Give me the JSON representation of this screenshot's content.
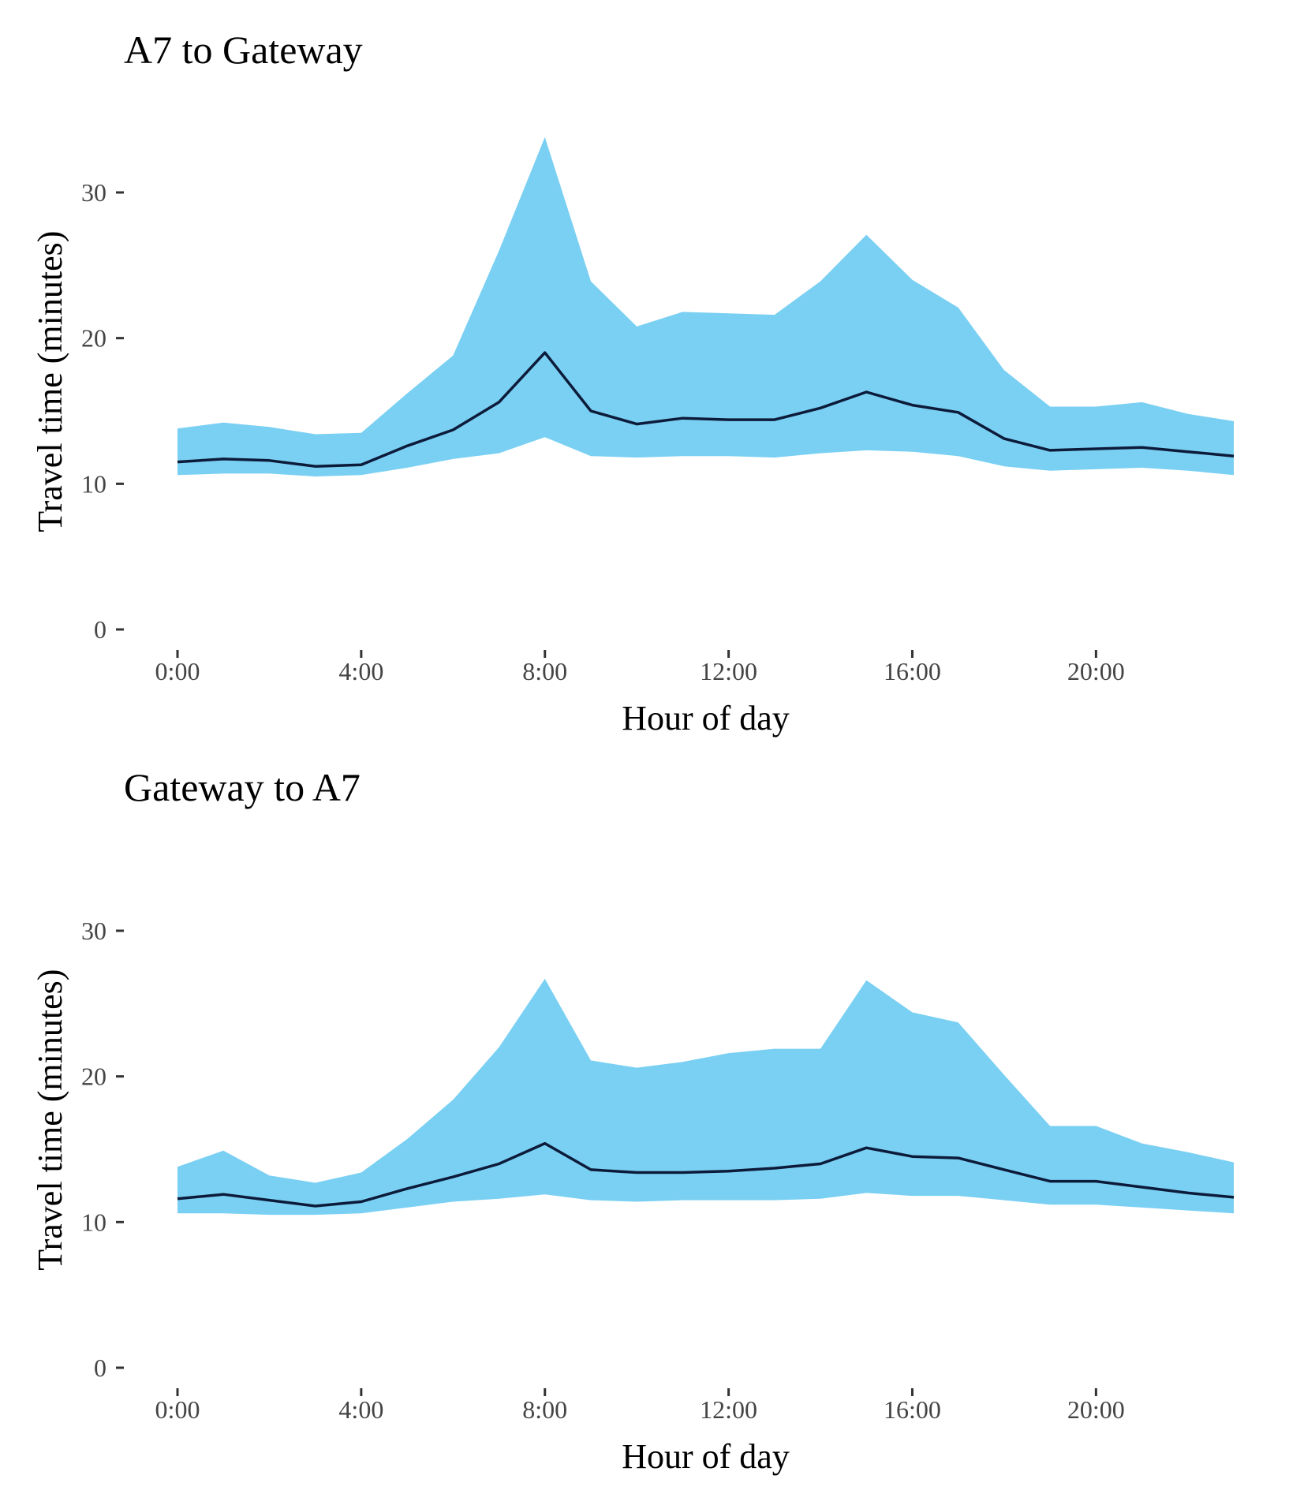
{
  "colors": {
    "band": "#7ad0f3",
    "line": "#0d1b3a",
    "tick_text": "#444444",
    "text": "#000000"
  },
  "chart_data": [
    {
      "type": "area",
      "title": "A7 to Gateway",
      "xlabel": "Hour of day",
      "ylabel": "Travel time (minutes)",
      "xlim": [
        0,
        23
      ],
      "ylim": [
        0,
        35
      ],
      "x_ticks": [
        0,
        4,
        8,
        12,
        16,
        20
      ],
      "x_tick_labels": [
        "0:00",
        "4:00",
        "8:00",
        "12:00",
        "16:00",
        "20:00"
      ],
      "y_ticks": [
        0,
        10,
        20,
        30
      ],
      "y_tick_labels": [
        "0",
        "10",
        "20",
        "30"
      ],
      "grid": false,
      "legend": "none",
      "x": [
        0,
        1,
        2,
        3,
        4,
        5,
        6,
        7,
        8,
        9,
        10,
        11,
        12,
        13,
        14,
        15,
        16,
        17,
        18,
        19,
        20,
        21,
        22,
        23
      ],
      "series": [
        {
          "role": "lower",
          "values": [
            10.6,
            10.7,
            10.7,
            10.5,
            10.6,
            11.1,
            11.7,
            12.1,
            13.2,
            11.9,
            11.8,
            11.9,
            11.9,
            11.8,
            12.1,
            12.3,
            12.2,
            11.9,
            11.2,
            10.9,
            11.0,
            11.1,
            10.9,
            10.6
          ]
        },
        {
          "role": "upper",
          "values": [
            13.8,
            14.2,
            13.9,
            13.4,
            13.5,
            16.2,
            18.8,
            26.0,
            33.8,
            23.9,
            20.8,
            21.8,
            21.7,
            21.6,
            23.9,
            27.1,
            24.0,
            22.1,
            17.8,
            15.3,
            15.3,
            15.6,
            14.8,
            14.3
          ]
        },
        {
          "role": "median",
          "values": [
            11.5,
            11.7,
            11.6,
            11.2,
            11.3,
            12.6,
            13.7,
            15.6,
            19.0,
            15.0,
            14.1,
            14.5,
            14.4,
            14.4,
            15.2,
            16.3,
            15.4,
            14.9,
            13.1,
            12.3,
            12.4,
            12.5,
            12.2,
            11.9
          ]
        }
      ]
    },
    {
      "type": "area",
      "title": "Gateway to A7",
      "xlabel": "Hour of day",
      "ylabel": "Travel time (minutes)",
      "xlim": [
        0,
        23
      ],
      "ylim": [
        0,
        35
      ],
      "x_ticks": [
        0,
        4,
        8,
        12,
        16,
        20
      ],
      "x_tick_labels": [
        "0:00",
        "4:00",
        "8:00",
        "12:00",
        "16:00",
        "20:00"
      ],
      "y_ticks": [
        0,
        10,
        20,
        30
      ],
      "y_tick_labels": [
        "0",
        "10",
        "20",
        "30"
      ],
      "grid": false,
      "legend": "none",
      "x": [
        0,
        1,
        2,
        3,
        4,
        5,
        6,
        7,
        8,
        9,
        10,
        11,
        12,
        13,
        14,
        15,
        16,
        17,
        18,
        19,
        20,
        21,
        22,
        23
      ],
      "series": [
        {
          "role": "lower",
          "values": [
            10.6,
            10.6,
            10.5,
            10.5,
            10.6,
            11.0,
            11.4,
            11.6,
            11.9,
            11.5,
            11.4,
            11.5,
            11.5,
            11.5,
            11.6,
            12.0,
            11.8,
            11.8,
            11.5,
            11.2,
            11.2,
            11.0,
            10.8,
            10.6
          ]
        },
        {
          "role": "upper",
          "values": [
            13.8,
            14.9,
            13.2,
            12.7,
            13.4,
            15.7,
            18.4,
            22.0,
            26.7,
            21.1,
            20.6,
            21.0,
            21.6,
            21.9,
            21.9,
            26.6,
            24.4,
            23.7,
            20.1,
            16.6,
            16.6,
            15.4,
            14.8,
            14.1
          ]
        },
        {
          "role": "median",
          "values": [
            11.6,
            11.9,
            11.5,
            11.1,
            11.4,
            12.3,
            13.1,
            14.0,
            15.4,
            13.6,
            13.4,
            13.4,
            13.5,
            13.7,
            14.0,
            15.1,
            14.5,
            14.4,
            13.6,
            12.8,
            12.8,
            12.4,
            12.0,
            11.7
          ]
        }
      ]
    }
  ]
}
